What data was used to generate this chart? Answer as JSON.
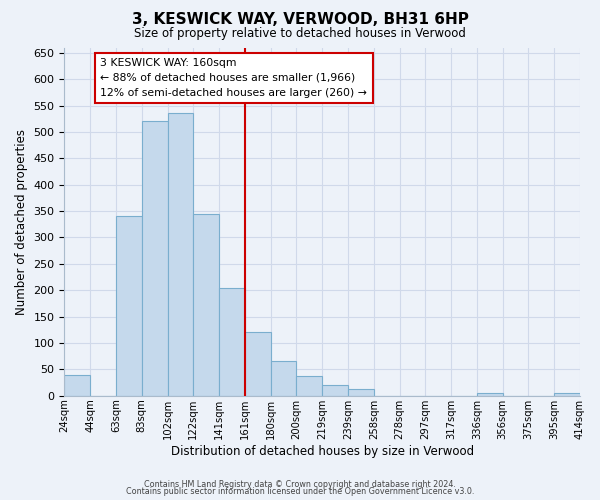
{
  "title": "3, KESWICK WAY, VERWOOD, BH31 6HP",
  "subtitle": "Size of property relative to detached houses in Verwood",
  "xlabel": "Distribution of detached houses by size in Verwood",
  "ylabel": "Number of detached properties",
  "bar_color": "#c5d9ec",
  "bar_edge_color": "#7aaece",
  "bin_labels": [
    "24sqm",
    "44sqm",
    "63sqm",
    "83sqm",
    "102sqm",
    "122sqm",
    "141sqm",
    "161sqm",
    "180sqm",
    "200sqm",
    "219sqm",
    "239sqm",
    "258sqm",
    "278sqm",
    "297sqm",
    "317sqm",
    "336sqm",
    "356sqm",
    "375sqm",
    "395sqm",
    "414sqm"
  ],
  "bar_heights": [
    40,
    0,
    340,
    520,
    535,
    345,
    205,
    120,
    65,
    38,
    20,
    12,
    0,
    0,
    0,
    0,
    5,
    0,
    0,
    5
  ],
  "ylim": [
    0,
    660
  ],
  "yticks": [
    0,
    50,
    100,
    150,
    200,
    250,
    300,
    350,
    400,
    450,
    500,
    550,
    600,
    650
  ],
  "vline_color": "#cc0000",
  "annotation_title": "3 KESWICK WAY: 160sqm",
  "annotation_line1": "← 88% of detached houses are smaller (1,966)",
  "annotation_line2": "12% of semi-detached houses are larger (260) →",
  "annotation_box_facecolor": "#ffffff",
  "annotation_box_edgecolor": "#cc0000",
  "footer1": "Contains HM Land Registry data © Crown copyright and database right 2024.",
  "footer2": "Contains public sector information licensed under the Open Government Licence v3.0.",
  "grid_color": "#d0d9ea",
  "background_color": "#edf2f9"
}
